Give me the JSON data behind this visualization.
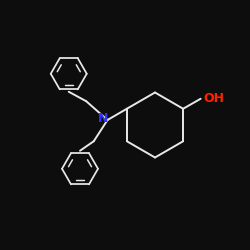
{
  "bg_color": "#0d0d0d",
  "bond_color": "#e8e8e8",
  "N_color": "#3333ff",
  "O_color": "#ff2200",
  "bond_width": 1.4,
  "font_size_label": 8,
  "N_label": "N",
  "OH_label": "OH",
  "figsize": [
    2.5,
    2.5
  ],
  "dpi": 100,
  "xlim": [
    0,
    10
  ],
  "ylim": [
    0,
    10
  ]
}
